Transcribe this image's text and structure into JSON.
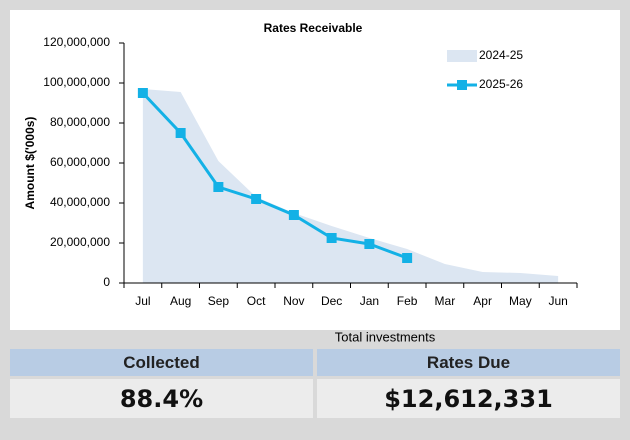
{
  "chart_data": {
    "type": "line",
    "title": "Rates Receivable",
    "ylabel": "Amount $('000s)",
    "categories": [
      "Jul",
      "Aug",
      "Sep",
      "Oct",
      "Nov",
      "Dec",
      "Jan",
      "Feb",
      "Mar",
      "Apr",
      "May",
      "Jun"
    ],
    "series": [
      {
        "name": "2024-25",
        "color": "#dce6f2",
        "style": "area",
        "values": [
          97000000,
          95500000,
          61000000,
          43000000,
          35000000,
          28500000,
          22500000,
          17000000,
          9500000,
          5500000,
          5000000,
          3500000
        ]
      },
      {
        "name": "2025-26",
        "color": "#13b1e6",
        "style": "line",
        "values": [
          95000000,
          75000000,
          48000000,
          42000000,
          34000000,
          22500000,
          19500000,
          12500000,
          null,
          null,
          null,
          null
        ]
      }
    ],
    "ylim": [
      0,
      120000000
    ],
    "yticks": [
      0,
      {
        "value": 20000000,
        "label": "20,000,000"
      },
      {
        "value": 40000000,
        "label": "40,000,000"
      },
      {
        "value": 60000000,
        "label": "60,000,000"
      },
      {
        "value": 80000000,
        "label": "80,000,000"
      },
      {
        "value": 100000000,
        "label": "100,000,000"
      },
      {
        "value": 120000000,
        "label": "120,000,000"
      }
    ],
    "legend": "upper right"
  },
  "caption": "Total investments",
  "table": {
    "headers": [
      "Collected",
      "Rates Due"
    ],
    "values": [
      "88.4%",
      "$12,612,331"
    ]
  }
}
